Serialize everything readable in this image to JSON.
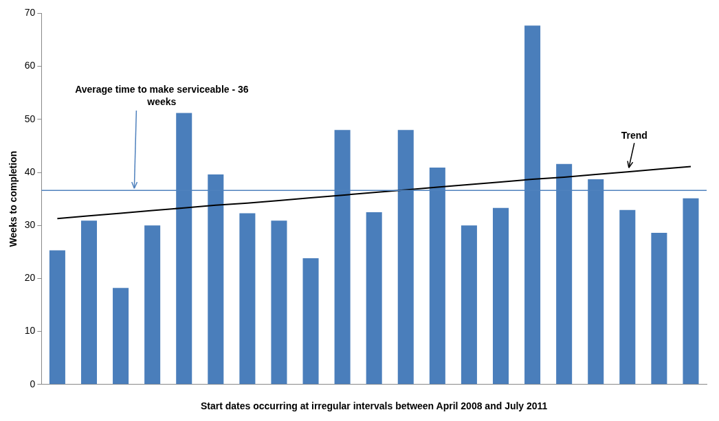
{
  "chart_data": {
    "type": "bar",
    "xlabel": "Start dates occurring at irregular intervals between April 2008 and July 2011",
    "ylabel": "Weeks to completion",
    "categories": [
      null,
      null,
      null,
      null,
      null,
      null,
      null,
      null,
      null,
      null,
      null,
      null,
      null,
      null,
      null,
      null,
      null,
      null,
      null,
      null,
      null
    ],
    "series": [
      {
        "color": "#4a7ebb",
        "values": [
          25.3,
          30.9,
          18.2,
          30.0,
          51.2,
          39.6,
          32.3,
          30.9,
          23.8,
          48.0,
          32.5,
          48.0,
          40.9,
          30.0,
          33.3,
          67.7,
          41.6,
          38.7,
          32.9,
          28.6,
          35.1
        ]
      },
      {
        "type": "line",
        "name": "Trend",
        "color": "#000000",
        "values": [
          31.3,
          31.8,
          32.3,
          32.8,
          33.3,
          33.8,
          34.2,
          34.7,
          35.2,
          35.7,
          36.2,
          36.7,
          37.2,
          37.7,
          38.2,
          38.7,
          39.1,
          39.6,
          40.1,
          40.6,
          41.1
        ]
      }
    ],
    "ref_lines": [
      {
        "axis": "y",
        "value": 36.6,
        "label": "Average time to make serviceable - 36 weeks",
        "color": "#4f81bd"
      }
    ],
    "ylim": [
      0,
      70
    ],
    "yticks": [
      0,
      10,
      20,
      30,
      40,
      50,
      60,
      70
    ],
    "grid": false,
    "legend": false,
    "marker": "none",
    "line_style": "solid"
  }
}
